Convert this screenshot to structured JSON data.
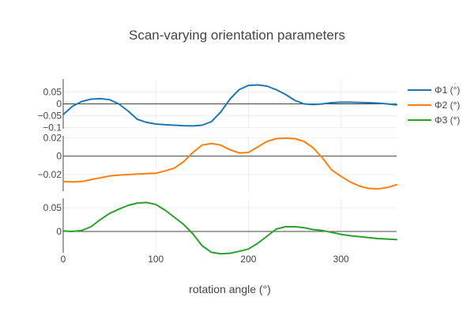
{
  "chart_data": {
    "type": "line",
    "title": "Scan-varying orientation parameters",
    "xlabel": "rotation angle (°)",
    "x_ticks": [
      "0",
      "100",
      "200",
      "300"
    ],
    "xlim": [
      0,
      360
    ],
    "grid": true,
    "legend_position": "top-right",
    "series": [
      {
        "name": "Φ1 (°)",
        "color": "#1f77b4",
        "panel": 0,
        "x": [
          0,
          10,
          20,
          30,
          40,
          50,
          60,
          70,
          80,
          90,
          100,
          110,
          120,
          130,
          140,
          150,
          160,
          170,
          180,
          190,
          200,
          210,
          220,
          230,
          240,
          250,
          260,
          270,
          280,
          290,
          300,
          310,
          320,
          330,
          340,
          350,
          360
        ],
        "y": [
          -0.045,
          -0.01,
          0.01,
          0.02,
          0.022,
          0.018,
          0.0,
          -0.03,
          -0.065,
          -0.078,
          -0.085,
          -0.088,
          -0.09,
          -0.092,
          -0.093,
          -0.09,
          -0.075,
          -0.035,
          0.02,
          0.06,
          0.078,
          0.08,
          0.075,
          0.06,
          0.04,
          0.015,
          0.0,
          -0.003,
          0.0,
          0.005,
          0.007,
          0.007,
          0.006,
          0.005,
          0.003,
          0.0,
          -0.004
        ]
      },
      {
        "name": "Φ2 (°)",
        "color": "#ff7f0e",
        "panel": 1,
        "x": [
          0,
          10,
          20,
          30,
          40,
          50,
          60,
          70,
          80,
          90,
          100,
          110,
          120,
          130,
          140,
          150,
          160,
          170,
          180,
          190,
          200,
          210,
          220,
          230,
          240,
          250,
          260,
          270,
          280,
          290,
          300,
          310,
          320,
          330,
          340,
          350,
          360
        ],
        "y": [
          -0.0275,
          -0.028,
          -0.0275,
          -0.0255,
          -0.0235,
          -0.0215,
          -0.0205,
          -0.02,
          -0.0195,
          -0.019,
          -0.0185,
          -0.016,
          -0.013,
          -0.006,
          0.004,
          0.012,
          0.0138,
          0.012,
          0.007,
          0.0035,
          0.004,
          0.01,
          0.016,
          0.019,
          0.0195,
          0.019,
          0.016,
          0.009,
          -0.002,
          -0.015,
          -0.022,
          -0.028,
          -0.0325,
          -0.035,
          -0.0355,
          -0.034,
          -0.031
        ]
      },
      {
        "name": "Φ3 (°)",
        "color": "#2ca02c",
        "panel": 2,
        "x": [
          0,
          10,
          20,
          30,
          40,
          50,
          60,
          70,
          80,
          90,
          100,
          110,
          120,
          130,
          140,
          150,
          160,
          170,
          180,
          190,
          200,
          210,
          220,
          230,
          240,
          250,
          260,
          270,
          280,
          290,
          300,
          310,
          320,
          330,
          340,
          350,
          360
        ],
        "y": [
          0.001,
          0.0,
          0.002,
          0.01,
          0.025,
          0.038,
          0.047,
          0.055,
          0.06,
          0.061,
          0.057,
          0.045,
          0.03,
          0.015,
          -0.005,
          -0.03,
          -0.044,
          -0.047,
          -0.046,
          -0.042,
          -0.037,
          -0.025,
          -0.01,
          0.005,
          0.01,
          0.01,
          0.008,
          0.004,
          0.002,
          -0.002,
          -0.006,
          -0.009,
          -0.011,
          -0.013,
          -0.015,
          -0.016,
          -0.017
        ]
      }
    ],
    "panels": [
      {
        "y_ticks": [
          0.05,
          0,
          -0.05,
          -0.1
        ],
        "y_tick_labels": [
          "0.05",
          "0",
          "−0.05",
          "−0.1"
        ],
        "ylim": [
          -0.105,
          0.105
        ]
      },
      {
        "y_ticks": [
          0.02,
          0,
          -0.02
        ],
        "y_tick_labels": [
          "0.02",
          "0",
          "−0.02"
        ],
        "ylim": [
          -0.038,
          0.022
        ]
      },
      {
        "y_ticks": [
          0.05,
          0
        ],
        "y_tick_labels": [
          "0.05",
          "0"
        ],
        "ylim": [
          -0.045,
          0.07
        ]
      }
    ]
  }
}
